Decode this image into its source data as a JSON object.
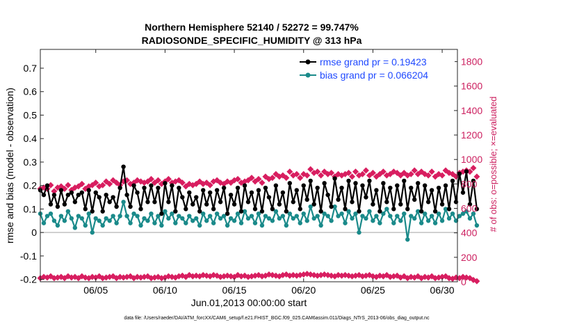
{
  "colors": {
    "rmse": "#000000",
    "bias": "#1a8a8a",
    "obs": "#d81e60",
    "right_axis": "#cc1f5f",
    "legend_text": "#1f49ff"
  },
  "footer": "data file: /Users/raeder/DAI/ATM_forcXX/CAM6_setup/f.e21.FHIST_BGC.f09_025.CAM6assim.011/Diags_NTrS_2013-06/obs_diag_output.nc",
  "chart_data": {
    "type": "line",
    "title": "Northern Hemisphere 52140 / 52272 = 99.747%",
    "subtitle": "RADIOSONDE_SPECIFIC_HUMIDITY @ 313 hPa",
    "xlabel": "Jun.01,2013 00:00:00 start",
    "ylabel": "rmse and bias (model - observation)",
    "y2label": "# of obs: o=possible; ×=evaluated",
    "xlim": [
      1,
      31.1
    ],
    "ylim": [
      -0.21,
      0.78
    ],
    "y2lim": [
      0,
      1900
    ],
    "x_ticks": [
      5,
      10,
      15,
      20,
      25,
      30
    ],
    "x_tick_labels": [
      "06/05",
      "06/10",
      "06/15",
      "06/20",
      "06/25",
      "06/30"
    ],
    "y_ticks": [
      -0.2,
      -0.1,
      0,
      0.1,
      0.2,
      0.3,
      0.4,
      0.5,
      0.6,
      0.7
    ],
    "y_tick_labels": [
      "-0.2",
      "-0.1",
      "0",
      "0.1",
      "0.2",
      "0.3",
      "0.4",
      "0.5",
      "0.6",
      "0.7"
    ],
    "y2_ticks": [
      0,
      200,
      400,
      600,
      800,
      1000,
      1200,
      1400,
      1600,
      1800
    ],
    "y2_tick_labels": [
      "0",
      "200",
      "400",
      "600",
      "800",
      "1000",
      "1200",
      "1400",
      "1600",
      "1800"
    ],
    "x_start": 1.0,
    "x_step": 0.25,
    "series": [
      {
        "name": "rmse grand pr = 0.19423",
        "axis": "left",
        "values": [
          0.18,
          0.16,
          0.2,
          0.12,
          0.16,
          0.11,
          0.18,
          0.12,
          0.16,
          0.17,
          0.13,
          0.16,
          0.17,
          0.1,
          0.18,
          0.09,
          0.17,
          0.15,
          0.09,
          0.16,
          0.13,
          0.15,
          0.11,
          0.19,
          0.28,
          0.16,
          0.11,
          0.2,
          0.17,
          0.1,
          0.19,
          0.13,
          0.2,
          0.13,
          0.19,
          0.08,
          0.21,
          0.13,
          0.2,
          0.09,
          0.19,
          0.15,
          0.1,
          0.17,
          0.12,
          0.15,
          0.09,
          0.18,
          0.12,
          0.17,
          0.1,
          0.18,
          0.13,
          0.19,
          0.08,
          0.16,
          0.12,
          0.19,
          0.09,
          0.2,
          0.13,
          0.17,
          0.1,
          0.18,
          0.09,
          0.19,
          0.15,
          0.1,
          0.2,
          0.12,
          0.17,
          0.09,
          0.21,
          0.13,
          0.18,
          0.1,
          0.2,
          0.14,
          0.22,
          0.12,
          0.19,
          0.09,
          0.21,
          0.16,
          0.11,
          0.23,
          0.14,
          0.19,
          0.1,
          0.22,
          0.13,
          0.21,
          0.09,
          0.2,
          0.15,
          0.22,
          0.12,
          0.18,
          0.09,
          0.21,
          0.13,
          0.19,
          0.1,
          0.2,
          0.12,
          0.22,
          0.1,
          0.19,
          0.14,
          0.21,
          0.09,
          0.2,
          0.13,
          0.18,
          0.09,
          0.19,
          0.12,
          0.2,
          0.1,
          0.22,
          0.13,
          0.25,
          0.17,
          0.26,
          0.12,
          0.22,
          0.1
        ],
        "marker": "circle"
      },
      {
        "name": "bias grand pr = 0.066204",
        "axis": "left",
        "values": [
          0.08,
          0.04,
          0.07,
          0.08,
          0.05,
          0.03,
          0.07,
          0.05,
          0.09,
          0.06,
          0.02,
          0.07,
          0.06,
          0.03,
          0.08,
          0.0,
          0.06,
          0.05,
          0.03,
          0.06,
          0.05,
          0.07,
          0.04,
          0.07,
          0.13,
          0.07,
          0.04,
          0.08,
          0.07,
          0.03,
          0.06,
          0.05,
          0.08,
          0.04,
          0.07,
          0.03,
          0.09,
          0.06,
          0.08,
          0.04,
          0.07,
          0.06,
          0.04,
          0.07,
          0.05,
          0.06,
          0.03,
          0.08,
          0.05,
          0.07,
          0.04,
          0.08,
          0.06,
          0.07,
          0.03,
          0.06,
          0.05,
          0.08,
          0.04,
          0.09,
          0.06,
          0.07,
          0.04,
          0.08,
          0.03,
          0.07,
          0.06,
          0.05,
          0.09,
          0.06,
          0.07,
          0.03,
          0.08,
          0.06,
          0.07,
          0.04,
          0.08,
          0.05,
          0.11,
          0.06,
          0.07,
          0.03,
          0.08,
          0.07,
          0.05,
          0.11,
          0.07,
          0.08,
          0.04,
          0.09,
          0.06,
          0.08,
          0.0,
          0.07,
          0.06,
          0.09,
          0.05,
          0.07,
          0.04,
          0.08,
          0.1,
          0.07,
          0.04,
          0.07,
          0.05,
          0.08,
          -0.03,
          0.07,
          0.06,
          0.09,
          0.04,
          0.08,
          0.05,
          0.07,
          0.04,
          0.08,
          0.05,
          0.1,
          0.06,
          0.08,
          0.05,
          0.07,
          0.08,
          0.09,
          0.06,
          0.08,
          0.03
        ],
        "marker": "circle"
      },
      {
        "name": "obs possible",
        "axis": "right",
        "values": [
          760,
          770,
          760,
          790,
          740,
          770,
          780,
          760,
          790,
          750,
          770,
          780,
          800,
          760,
          780,
          790,
          810,
          780,
          790,
          820,
          800,
          830,
          810,
          790,
          820,
          830,
          800,
          810,
          830,
          820,
          810,
          820,
          840,
          810,
          830,
          800,
          820,
          840,
          810,
          820,
          830,
          810,
          780,
          800,
          790,
          800,
          820,
          800,
          810,
          790,
          820,
          830,
          810,
          800,
          820,
          810,
          830,
          840,
          810,
          820,
          830,
          850,
          820,
          840,
          810,
          860,
          840,
          850,
          880,
          860,
          870,
          850,
          900,
          870,
          880,
          850,
          880,
          870,
          920,
          890,
          900,
          870,
          900,
          880,
          890,
          860,
          880,
          870,
          880,
          890,
          860,
          900,
          870,
          880,
          910,
          870,
          890,
          860,
          880,
          900,
          870,
          880,
          900,
          890,
          870,
          890,
          870,
          880,
          910,
          880,
          900,
          880,
          870,
          900,
          860,
          880,
          870,
          910,
          890,
          880,
          860,
          890,
          900,
          910,
          900,
          930,
          860
        ],
        "marker": "diamond"
      },
      {
        "name": "obs evaluated",
        "axis": "right",
        "values": [
          30,
          40,
          35,
          45,
          30,
          35,
          40,
          30,
          45,
          35,
          40,
          30,
          45,
          35,
          30,
          40,
          35,
          45,
          30,
          35,
          40,
          45,
          30,
          40,
          35,
          40,
          45,
          30,
          40,
          35,
          40,
          45,
          30,
          35,
          40,
          30,
          35,
          45,
          40,
          35,
          45,
          50,
          40,
          55,
          45,
          50,
          45,
          55,
          50,
          45,
          55,
          50,
          40,
          45,
          50,
          45,
          40,
          55,
          45,
          50,
          40,
          45,
          50,
          55,
          45,
          50,
          60,
          55,
          50,
          45,
          55,
          60,
          50,
          55,
          50,
          55,
          60,
          65,
          60,
          55,
          50,
          55,
          60,
          55,
          50,
          45,
          55,
          50,
          55,
          50,
          45,
          50,
          55,
          45,
          50,
          55,
          45,
          40,
          50,
          45,
          55,
          40,
          45,
          50,
          35,
          45,
          30,
          40,
          35,
          45,
          30,
          40,
          35,
          45,
          30,
          35,
          40,
          45,
          30,
          25,
          35,
          30,
          40,
          35,
          30,
          15,
          5
        ],
        "marker": "x"
      }
    ],
    "zero_line": 0
  }
}
